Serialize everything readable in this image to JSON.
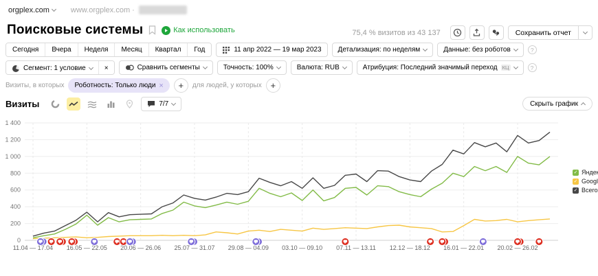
{
  "icons": {
    "plus": "+",
    "close": "×",
    "check": "✓",
    "question": "?",
    "bullet": "·"
  },
  "topbar": {
    "site": "orgplex.com",
    "url": "www.orgplex.com ·"
  },
  "header": {
    "title": "Поисковые системы",
    "how_to_use": "Как использовать",
    "visits_stat": "75,4 % визитов из 43 137",
    "save_report": "Сохранить отчет"
  },
  "period_tabs": [
    "Сегодня",
    "Вчера",
    "Неделя",
    "Месяц",
    "Квартал",
    "Год"
  ],
  "controls": {
    "date_range": "11 апр 2022 — 19 мар 2023",
    "detail": "Детализация: по неделям",
    "data_mode": "Данные: без роботов",
    "segment": "Сегмент: 1 условие",
    "compare": "Сравнить сегменты",
    "accuracy": "Точность: 100%",
    "currency": "Валюта: RUB",
    "attribution": "Атрибуция: Последний значимый переход",
    "attribution_badge": "КЦ"
  },
  "segment_row": {
    "prefix": "Визиты, в которых",
    "pill": "Роботность: Только люди",
    "suffix": "для людей, у которых"
  },
  "chart_header": {
    "metric": "Визиты",
    "comments": "7/7",
    "hide_chart": "Скрыть график"
  },
  "chart_data": {
    "type": "line",
    "title": "Визиты",
    "xlabel": "",
    "ylabel": "",
    "ylim": [
      0,
      1400
    ],
    "grid": true,
    "legend_position": "right",
    "n_points": 49,
    "y_tick_labels": [
      "0",
      "200",
      "400",
      "600",
      "800",
      "1 000",
      "1 200",
      "1 400"
    ],
    "x_ticks": [
      {
        "week": 0,
        "label": "11.04 — 17.04"
      },
      {
        "week": 5,
        "label": "16.05 — 22.05"
      },
      {
        "week": 10,
        "label": "20.06 — 26.06"
      },
      {
        "week": 15,
        "label": "25.07 — 31.07"
      },
      {
        "week": 20,
        "label": "29.08 — 04.09"
      },
      {
        "week": 25,
        "label": "03.10 — 09.10"
      },
      {
        "week": 30,
        "label": "07.11 — 13.11"
      },
      {
        "week": 35,
        "label": "12.12 — 18.12"
      },
      {
        "week": 40,
        "label": "16.01 — 22.01"
      },
      {
        "week": 45,
        "label": "20.02 — 26.02"
      }
    ],
    "series": [
      {
        "name": "Яндекс",
        "color": "#82bb47",
        "values": [
          30,
          55,
          75,
          130,
          195,
          300,
          180,
          270,
          220,
          245,
          250,
          255,
          320,
          360,
          455,
          410,
          390,
          420,
          455,
          430,
          465,
          620,
          560,
          520,
          565,
          475,
          600,
          470,
          510,
          620,
          630,
          540,
          650,
          640,
          580,
          545,
          520,
          610,
          680,
          800,
          760,
          880,
          830,
          880,
          810,
          1000,
          920,
          900,
          1000
        ]
      },
      {
        "name": "Google",
        "color": "#f7c644",
        "values": [
          20,
          25,
          30,
          35,
          40,
          30,
          35,
          45,
          50,
          55,
          55,
          55,
          60,
          55,
          60,
          55,
          65,
          100,
          90,
          75,
          110,
          120,
          105,
          130,
          120,
          110,
          145,
          130,
          140,
          150,
          145,
          140,
          160,
          175,
          180,
          160,
          150,
          140,
          100,
          105,
          175,
          250,
          230,
          235,
          250,
          220,
          235,
          245,
          255
        ]
      },
      {
        "name": "Всего",
        "color": "#474747",
        "values": [
          50,
          85,
          110,
          175,
          240,
          335,
          220,
          330,
          280,
          305,
          310,
          315,
          400,
          445,
          540,
          500,
          480,
          515,
          560,
          545,
          580,
          740,
          690,
          650,
          700,
          620,
          745,
          620,
          655,
          775,
          790,
          700,
          830,
          825,
          760,
          720,
          700,
          825,
          905,
          1075,
          1030,
          1165,
          1115,
          1160,
          1055,
          1250,
          1160,
          1190,
          1290
        ]
      }
    ],
    "annotation_colors": {
      "red": "#dd2c1e",
      "purple": "#7c6bd9"
    },
    "annotations": [
      {
        "week": 0.7,
        "color": "purple",
        "stacked": true
      },
      {
        "week": 1.7,
        "color": "red",
        "stacked": false
      },
      {
        "week": 2.5,
        "color": "red",
        "stacked": true
      },
      {
        "week": 3.6,
        "color": "red",
        "stacked": true
      },
      {
        "week": 5.7,
        "color": "purple",
        "stacked": false
      },
      {
        "week": 7.8,
        "color": "red",
        "stacked": false
      },
      {
        "week": 8.4,
        "color": "red",
        "stacked": false
      },
      {
        "week": 9.0,
        "color": "purple",
        "stacked": true
      },
      {
        "week": 14.7,
        "color": "purple",
        "stacked": true
      },
      {
        "week": 20.7,
        "color": "purple",
        "stacked": true
      },
      {
        "week": 29.0,
        "color": "red",
        "stacked": false
      },
      {
        "week": 36.9,
        "color": "red",
        "stacked": false
      },
      {
        "week": 38.0,
        "color": "red",
        "stacked": true
      },
      {
        "week": 41.8,
        "color": "purple",
        "stacked": false
      },
      {
        "week": 45.0,
        "color": "red",
        "stacked": true
      },
      {
        "week": 47.0,
        "color": "red",
        "stacked": false
      }
    ]
  }
}
